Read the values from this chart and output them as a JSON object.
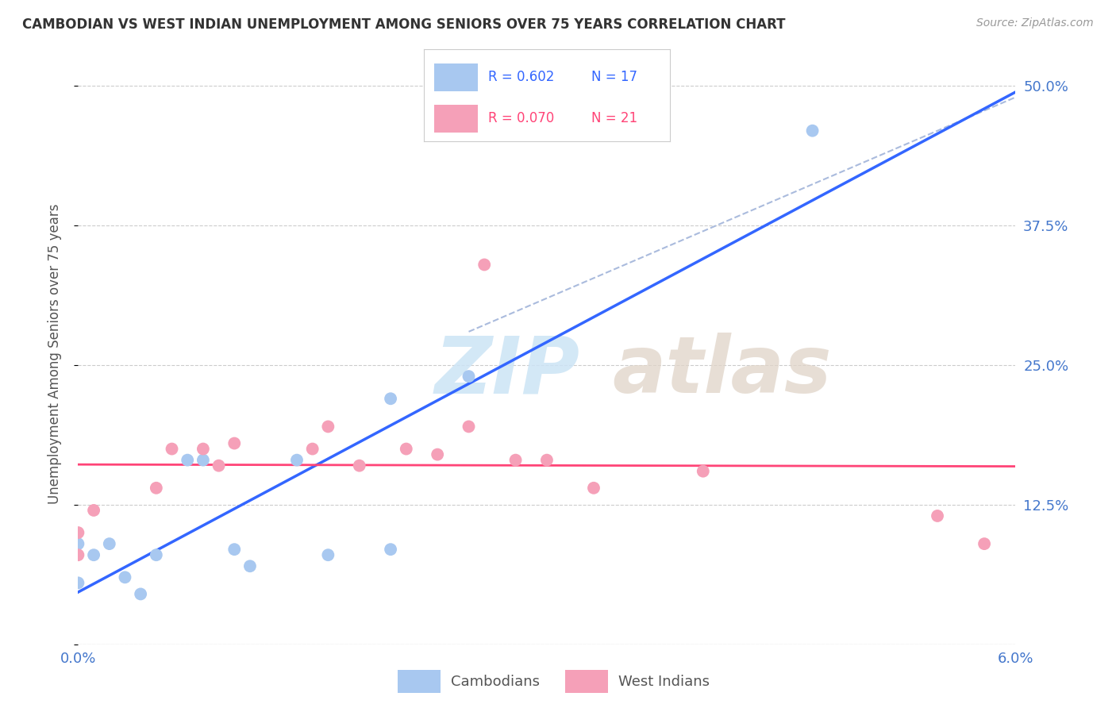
{
  "title": "CAMBODIAN VS WEST INDIAN UNEMPLOYMENT AMONG SENIORS OVER 75 YEARS CORRELATION CHART",
  "source": "Source: ZipAtlas.com",
  "ylabel": "Unemployment Among Seniors over 75 years",
  "xlim": [
    0.0,
    0.06
  ],
  "ylim": [
    0.0,
    0.52
  ],
  "yticks": [
    0.0,
    0.125,
    0.25,
    0.375,
    0.5
  ],
  "ytick_labels": [
    "",
    "12.5%",
    "25.0%",
    "37.5%",
    "50.0%"
  ],
  "xtick_labels": [
    "0.0%",
    "",
    "",
    "",
    "",
    "",
    "6.0%"
  ],
  "xticks": [
    0.0,
    0.01,
    0.02,
    0.03,
    0.04,
    0.05,
    0.06
  ],
  "cambodian_color": "#a8c8f0",
  "west_indian_color": "#f5a0b8",
  "trendline_cambodian_color": "#3366ff",
  "trendline_west_indian_color": "#ff4477",
  "diagonal_color": "#aabbdd",
  "R_cambodian": 0.602,
  "N_cambodian": 17,
  "R_west_indian": 0.07,
  "N_west_indian": 21,
  "cambodian_x": [
    0.0,
    0.0,
    0.001,
    0.002,
    0.003,
    0.004,
    0.005,
    0.007,
    0.008,
    0.01,
    0.011,
    0.014,
    0.016,
    0.02,
    0.02,
    0.025,
    0.047
  ],
  "cambodian_y": [
    0.055,
    0.09,
    0.08,
    0.09,
    0.06,
    0.045,
    0.08,
    0.165,
    0.165,
    0.085,
    0.07,
    0.165,
    0.08,
    0.085,
    0.22,
    0.24,
    0.46
  ],
  "west_indian_x": [
    0.0,
    0.0,
    0.001,
    0.005,
    0.006,
    0.008,
    0.009,
    0.01,
    0.015,
    0.016,
    0.018,
    0.021,
    0.023,
    0.025,
    0.026,
    0.028,
    0.03,
    0.033,
    0.04,
    0.055,
    0.058
  ],
  "west_indian_y": [
    0.08,
    0.1,
    0.12,
    0.14,
    0.175,
    0.175,
    0.16,
    0.18,
    0.175,
    0.195,
    0.16,
    0.175,
    0.17,
    0.195,
    0.34,
    0.165,
    0.165,
    0.14,
    0.155,
    0.115,
    0.09
  ],
  "watermark_zip": "ZIP",
  "watermark_atlas": "atlas",
  "marker_size": 130
}
